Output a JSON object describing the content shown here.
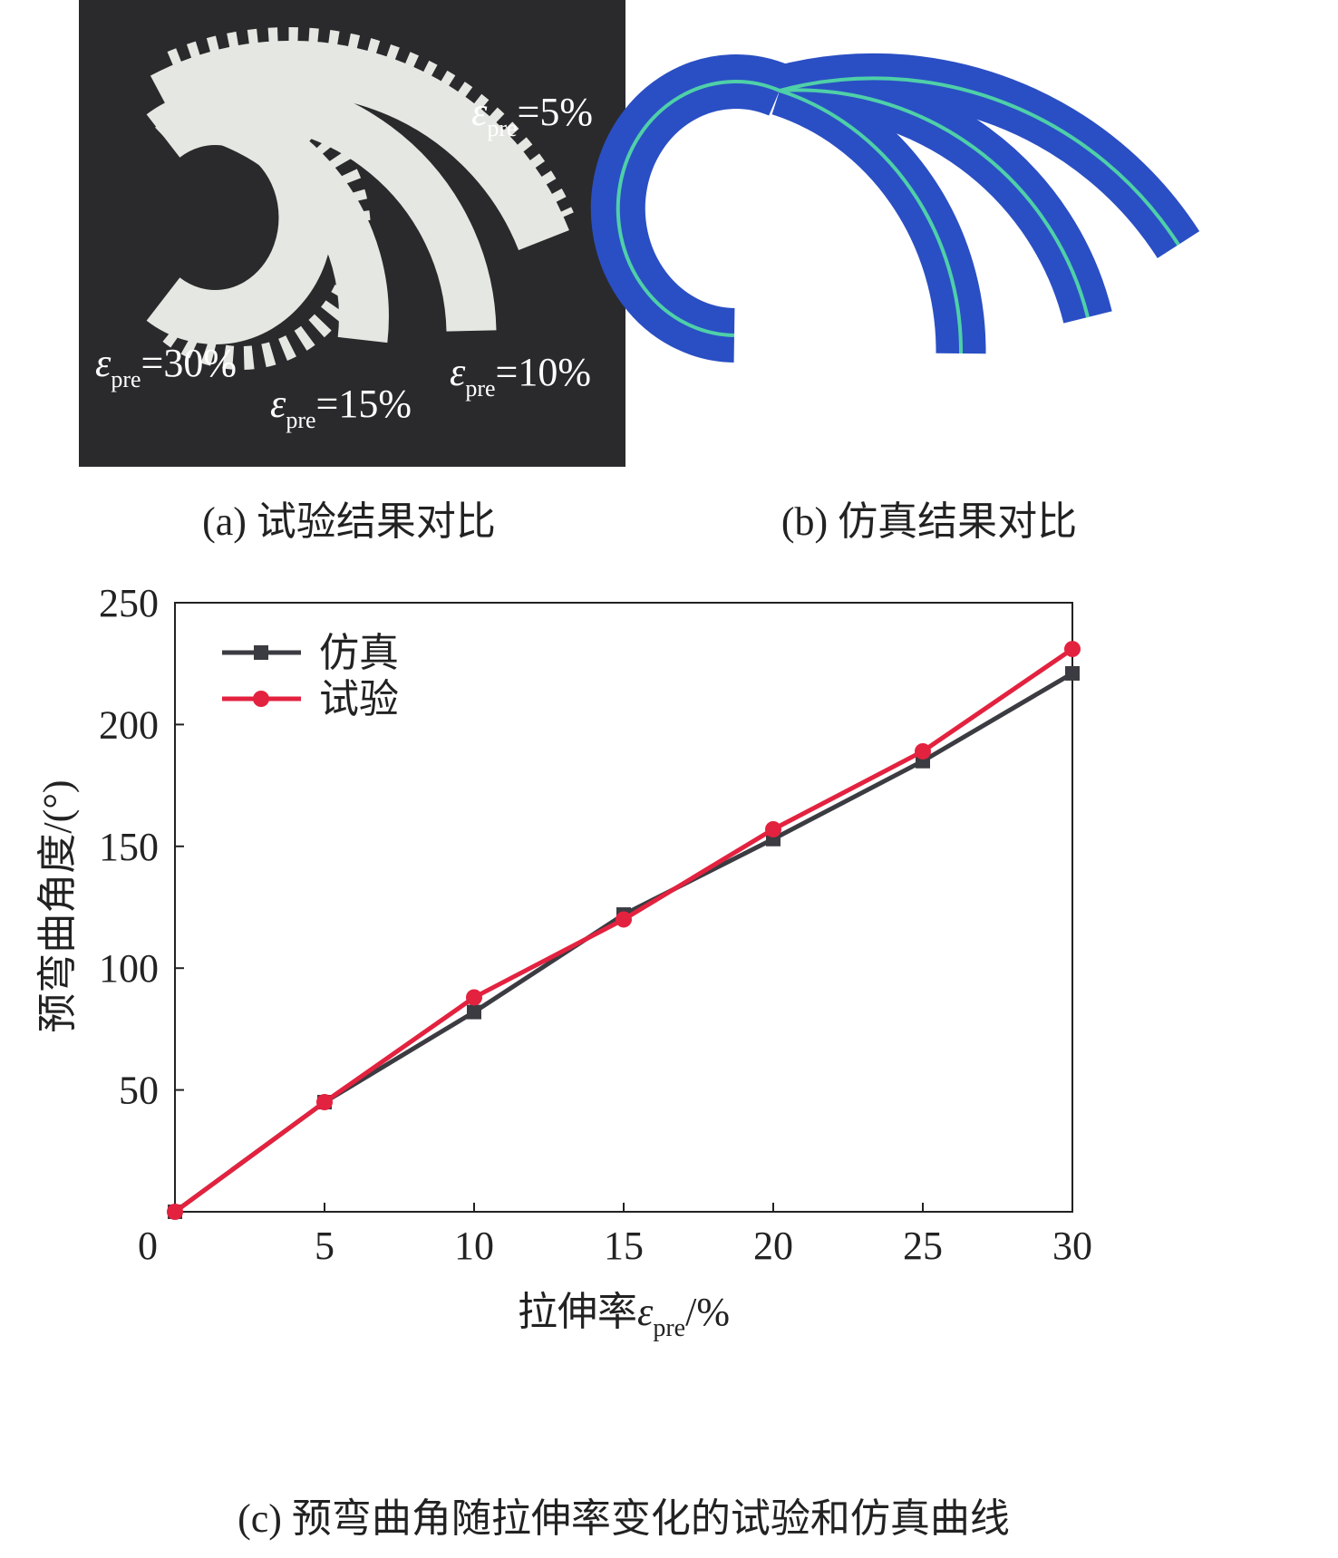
{
  "panels": {
    "a": {
      "caption": "(a) 试验结果对比",
      "labels": [
        {
          "symbol": "ε",
          "subscript": "pre",
          "text": "=5%"
        },
        {
          "symbol": "ε",
          "subscript": "pre",
          "text": "=30%"
        },
        {
          "symbol": "ε",
          "subscript": "pre",
          "text": "=15%"
        },
        {
          "symbol": "ε",
          "subscript": "pre",
          "text": "=10%"
        }
      ]
    },
    "b": {
      "caption": "(b) 仿真结果对比"
    }
  },
  "chart_data": {
    "type": "line",
    "caption": "(c) 预弯曲角随拉伸率变化的试验和仿真曲线",
    "x_label": {
      "text": "拉伸率",
      "symbol": "ε",
      "subscript": "pre",
      "unit": "/%"
    },
    "y_label": "预弯曲角度/(°)",
    "x": [
      0,
      5,
      10,
      15,
      20,
      25,
      30
    ],
    "series": [
      {
        "name": "仿真",
        "color": "#3b3b42",
        "marker": "square",
        "values": [
          0,
          45,
          82,
          122,
          153,
          185,
          221
        ]
      },
      {
        "name": "试验",
        "color": "#e3223f",
        "marker": "circle",
        "values": [
          0,
          45,
          88,
          120,
          157,
          189,
          231
        ]
      }
    ],
    "xlim": [
      0,
      30
    ],
    "xticks": [
      0,
      5,
      10,
      15,
      20,
      25,
      30
    ],
    "ylim": [
      0,
      250
    ],
    "yticks": [
      50,
      100,
      150,
      200,
      250
    ],
    "legend": "upper-left"
  }
}
